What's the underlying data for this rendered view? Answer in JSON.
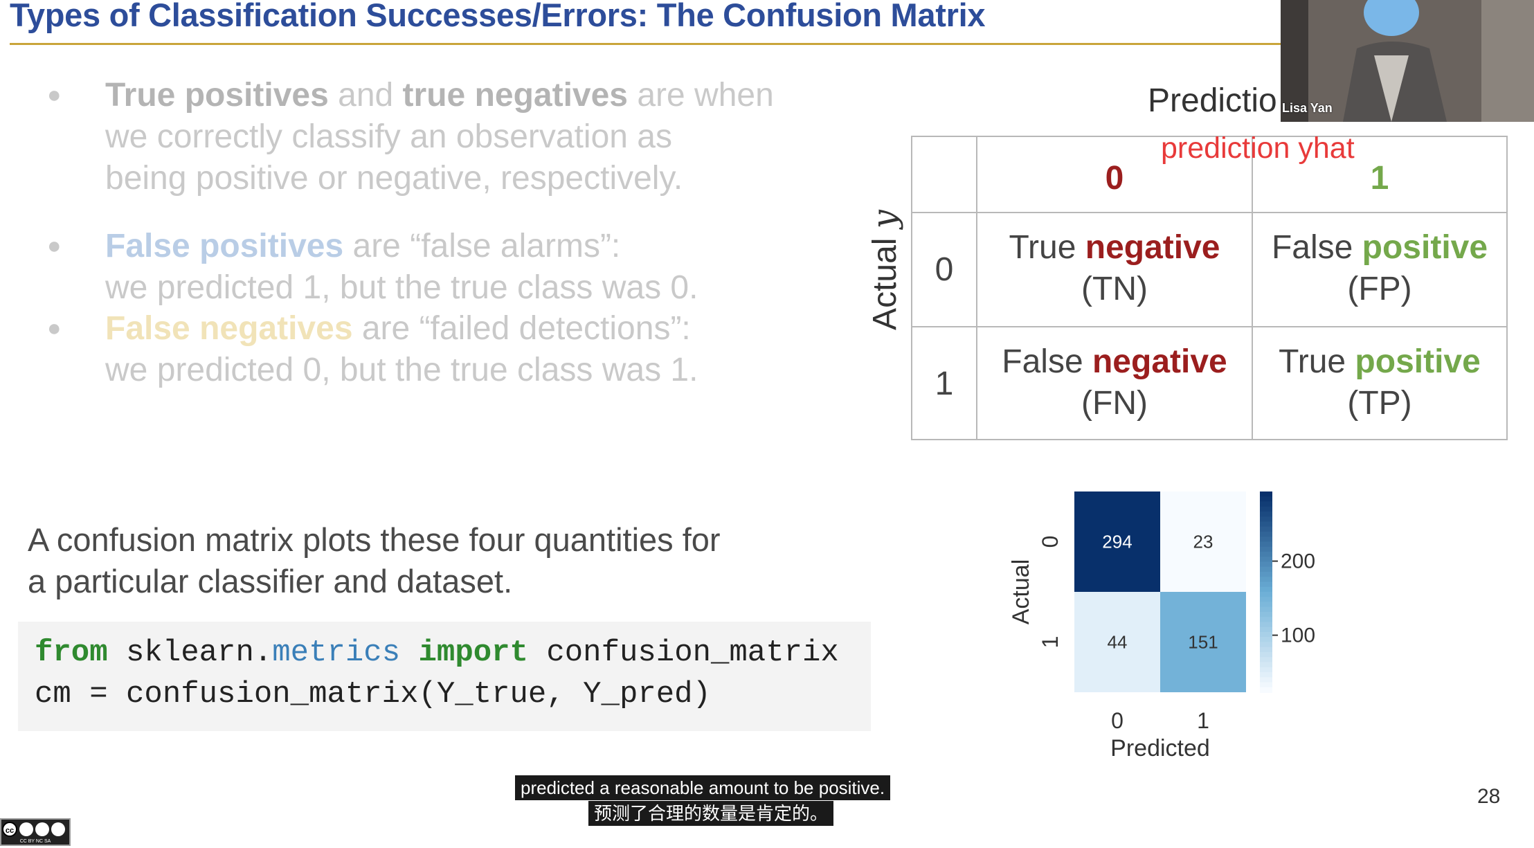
{
  "slide": {
    "title": "Types of Classification Successes/Errors: The Confusion Matrix",
    "page_number": "28",
    "bullets": [
      {
        "pre_strong": "True positives",
        "mid": " and ",
        "strong2": "true negatives",
        "rest_line1": " are when",
        "line2": "we correctly classify an observation as",
        "line3": "being positive or negative, respectively."
      },
      {
        "strong": "False positives",
        "rest_line1": " are “false alarms”:",
        "line2": "we predicted 1, but the true class was 0."
      },
      {
        "strong": "False negatives",
        "rest_line1": " are “failed detections”:",
        "line2": "we predicted 0, but the true class was 1."
      }
    ],
    "description": [
      "A confusion matrix plots these four quantities for",
      "a particular classifier and dataset."
    ],
    "code": {
      "kw_from": "from",
      "module_pkg": "sklearn.",
      "module_sub": "metrics",
      "kw_import": "import",
      "func": "confusion_matrix",
      "line2": "cm = confusion_matrix(Y_true, Y_pred)"
    }
  },
  "diagram": {
    "prediction_header": "Predictio",
    "annotation": "prediction yhat",
    "actual_label": "Actual",
    "actual_var": "y",
    "col_headers": [
      "0",
      "1"
    ],
    "row_headers": [
      "0",
      "1"
    ],
    "cells": [
      {
        "word1": "True ",
        "word2": "negative",
        "abbr": "(TN)",
        "kind": "neg"
      },
      {
        "word1": "False ",
        "word2": "positive",
        "abbr": "(FP)",
        "kind": "pos"
      },
      {
        "word1": "False ",
        "word2": "negative",
        "abbr": "(FN)",
        "kind": "neg"
      },
      {
        "word1": "True ",
        "word2": "positive",
        "abbr": "(TP)",
        "kind": "pos"
      }
    ]
  },
  "chart_data": {
    "type": "heatmap",
    "xlabel": "Predicted",
    "ylabel": "Actual",
    "x_categories": [
      "0",
      "1"
    ],
    "y_categories": [
      "0",
      "1"
    ],
    "values": [
      [
        294,
        23
      ],
      [
        44,
        151
      ]
    ],
    "colorbar_ticks": [
      100,
      200
    ],
    "colorbar_range": [
      23,
      294
    ],
    "colormap": "Blues",
    "annotations": true
  },
  "webcam": {
    "name_tag": "Lisa Yan"
  },
  "subtitles": {
    "english": "predicted a reasonable amount to be positive.",
    "chinese": "预测了合理的数量是肯定的。"
  },
  "license_badge": "CC BY NC SA"
}
